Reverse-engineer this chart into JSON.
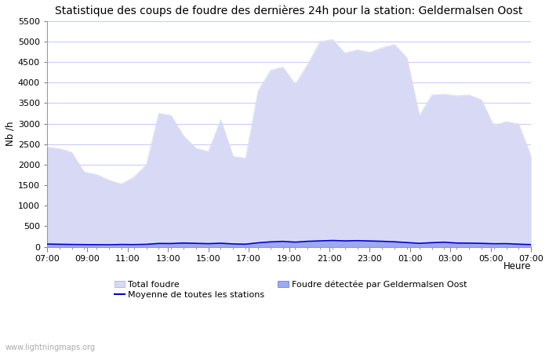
{
  "title": "Statistique des coups de foudre des dernières 24h pour la station: Geldermalsen Oost",
  "ylabel": "Nb /h",
  "xlabel": "Heure",
  "watermark": "www.lightningmaps.org",
  "x_labels": [
    "07:00",
    "09:00",
    "11:00",
    "13:00",
    "15:00",
    "17:00",
    "19:00",
    "21:00",
    "23:00",
    "01:00",
    "03:00",
    "05:00",
    "07:00"
  ],
  "ylim": [
    0,
    5500
  ],
  "yticks": [
    0,
    500,
    1000,
    1500,
    2000,
    2500,
    3000,
    3500,
    4000,
    4500,
    5000,
    5500
  ],
  "bg_color": "#ffffff",
  "plot_bg_color": "#ffffff",
  "grid_color": "#ccccff",
  "fill_total_color": "#d8daf5",
  "fill_station_color": "#9ea8f0",
  "line_mean_color": "#0000cc",
  "total_foudre": [
    2430,
    2390,
    2300,
    1820,
    1760,
    1620,
    1530,
    1700,
    2000,
    3250,
    3200,
    2700,
    2400,
    2320,
    3100,
    2200,
    2160,
    3800,
    4300,
    4380,
    3960,
    4450,
    5000,
    5050,
    4720,
    4800,
    4740,
    4850,
    4930,
    4600,
    3200,
    3700,
    3720,
    3680,
    3700,
    3580,
    2950,
    3050,
    2990,
    2200
  ],
  "station_foudre": [
    70,
    60,
    50,
    40,
    35,
    30,
    45,
    40,
    50,
    85,
    80,
    95,
    90,
    80,
    90,
    65,
    60,
    95,
    115,
    125,
    110,
    130,
    140,
    150,
    140,
    140,
    135,
    130,
    120,
    100,
    80,
    95,
    105,
    90,
    85,
    80,
    70,
    70,
    60,
    50
  ],
  "mean_line": [
    65,
    60,
    55,
    52,
    50,
    48,
    55,
    52,
    58,
    80,
    78,
    90,
    82,
    75,
    85,
    68,
    62,
    95,
    118,
    130,
    112,
    132,
    142,
    152,
    142,
    148,
    140,
    132,
    120,
    102,
    82,
    98,
    110,
    90,
    87,
    82,
    73,
    75,
    62,
    52
  ],
  "legend_total": "Total foudre",
  "legend_mean": "Moyenne de toutes les stations",
  "legend_station": "Foudre détectée par Geldermalsen Oost",
  "title_fontsize": 10,
  "label_fontsize": 8.5,
  "tick_fontsize": 8,
  "legend_fontsize": 8
}
